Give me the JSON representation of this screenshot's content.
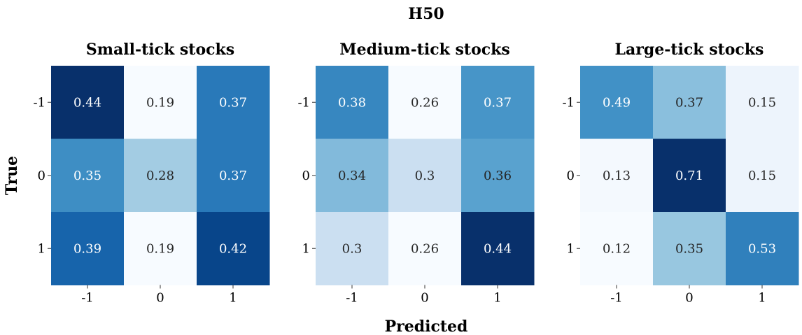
{
  "chart_data": {
    "type": "heatmap",
    "title": "H50",
    "xlabel": "Predicted",
    "ylabel": "True",
    "x_categories": [
      "-1",
      "0",
      "1"
    ],
    "y_categories": [
      "-1",
      "0",
      "1"
    ],
    "colormap": "Blues",
    "panels": [
      {
        "title": "Small-tick stocks",
        "values": [
          [
            0.44,
            0.19,
            0.37
          ],
          [
            0.35,
            0.28,
            0.37
          ],
          [
            0.39,
            0.19,
            0.42
          ]
        ]
      },
      {
        "title": "Medium-tick stocks",
        "values": [
          [
            0.38,
            0.26,
            0.37
          ],
          [
            0.34,
            0.3,
            0.36
          ],
          [
            0.3,
            0.26,
            0.44
          ]
        ]
      },
      {
        "title": "Large-tick stocks",
        "values": [
          [
            0.49,
            0.37,
            0.15
          ],
          [
            0.13,
            0.71,
            0.15
          ],
          [
            0.12,
            0.35,
            0.53
          ]
        ]
      }
    ]
  }
}
